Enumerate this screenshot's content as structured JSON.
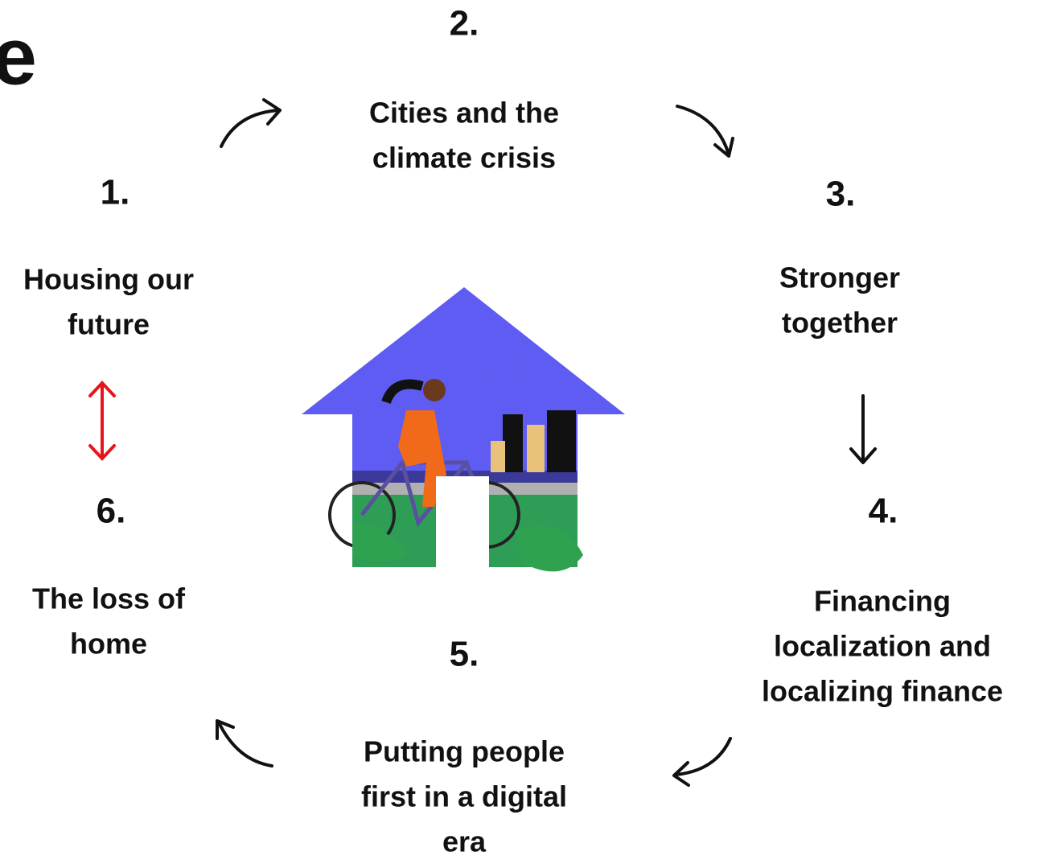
{
  "heading_fragment": "e",
  "steps": [
    {
      "number": "1.",
      "label": [
        "Housing our",
        "future"
      ]
    },
    {
      "number": "2.",
      "label": [
        "Cities and the",
        "climate crisis"
      ]
    },
    {
      "number": "3.",
      "label": [
        "Stronger",
        "together"
      ]
    },
    {
      "number": "4.",
      "label": [
        "Financing",
        "localization and",
        "localizing finance"
      ]
    },
    {
      "number": "5.",
      "label": [
        "Putting people",
        "first in a digital",
        "era"
      ]
    },
    {
      "number": "6.",
      "label": [
        "The loss of",
        "home"
      ]
    }
  ]
}
